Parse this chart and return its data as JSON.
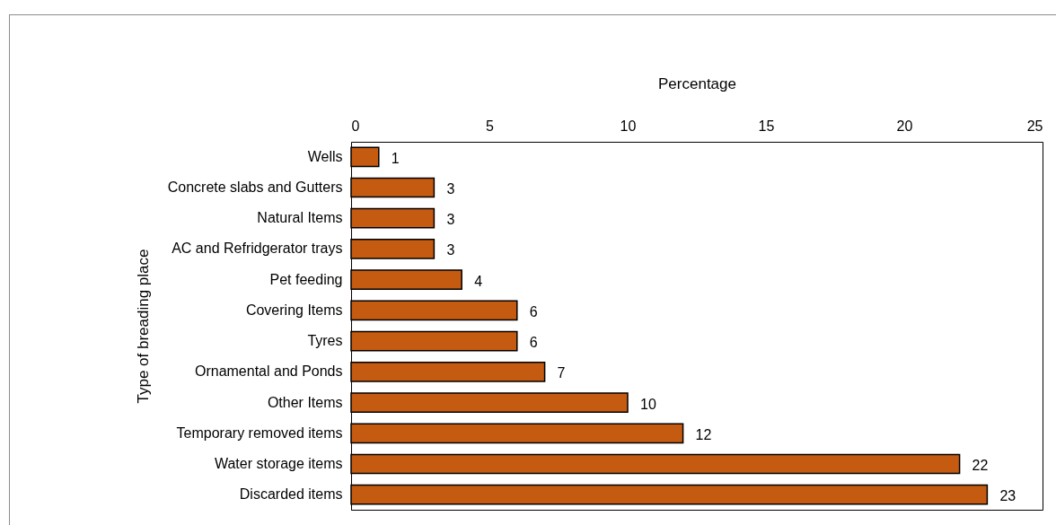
{
  "chart_data": {
    "type": "bar",
    "orientation": "horizontal",
    "xlabel": "Percentage",
    "ylabel": "Type of breading place",
    "categories": [
      "Wells",
      "Concrete slabs and Gutters",
      "Natural Items",
      "AC and Refridgerator trays",
      "Pet feeding",
      "Covering Items",
      "Tyres",
      "Ornamental and Ponds",
      "Other Items",
      "Temporary removed items",
      "Water storage items",
      "Discarded items"
    ],
    "values": [
      1,
      3,
      3,
      3,
      4,
      6,
      6,
      7,
      10,
      12,
      22,
      23
    ],
    "color": "#c55a11",
    "xlim": [
      0,
      25
    ],
    "xticks": [
      0,
      5,
      10,
      15,
      20,
      25
    ],
    "data_labels": true,
    "grid": false
  }
}
